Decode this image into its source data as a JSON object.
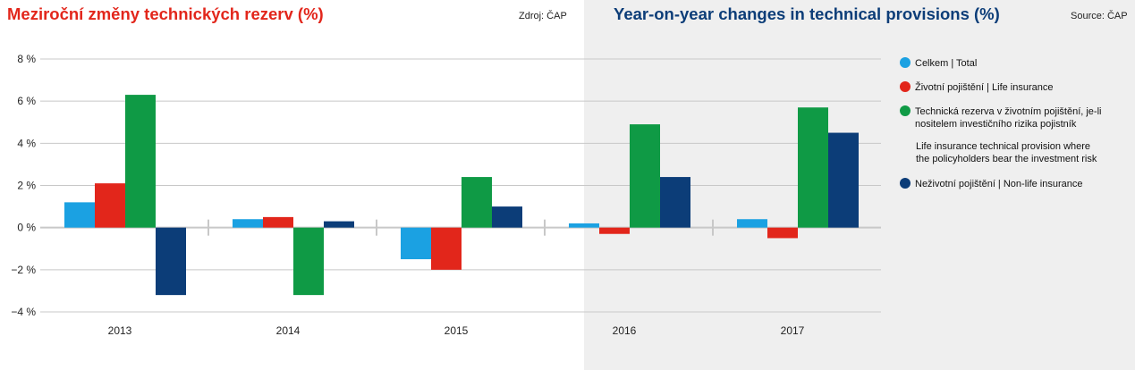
{
  "header": {
    "title_cz": "Meziroční změny technických rezerv (%)",
    "source_cz": "Zdroj: ČAP",
    "title_en": "Year-on-year changes in technical provisions (%)",
    "source_en": "Source: ČAP"
  },
  "legend": {
    "items": [
      {
        "label": "Celkem | Total",
        "color": "#1ba1e2"
      },
      {
        "label_lines": [
          "Životní pojištění | Life insurance"
        ],
        "color": "#e2261b"
      },
      {
        "label_lines": [
          "Technická rezerva v životním pojištění, je-li",
          "nositelem investičního rizika pojistník"
        ],
        "color": "#0f9a45"
      },
      {
        "label_lines": [
          "Neživotní pojištění | Non-life insurance"
        ],
        "color": "#0c3d78"
      }
    ],
    "note_lines": [
      "Life insurance technical provision where",
      "the policyholders bear the investment risk"
    ]
  },
  "chart_data": {
    "type": "bar",
    "categories": [
      "2013",
      "2014",
      "2015",
      "2016",
      "2017"
    ],
    "ylim": [
      -4,
      8
    ],
    "yticks": [
      -4,
      -2,
      0,
      2,
      4,
      6,
      8
    ],
    "ytick_labels": [
      "−4 %",
      "−2 %",
      "0 %",
      "2 %",
      "4 %",
      "6 %",
      "8 %"
    ],
    "grid": true,
    "legend_position": "right",
    "series": [
      {
        "name": "Celkem | Total",
        "color": "#1ba1e2",
        "values": [
          1.2,
          0.4,
          -1.5,
          0.2,
          0.4
        ]
      },
      {
        "name": "Životní pojištění | Life insurance",
        "color": "#e2261b",
        "values": [
          2.1,
          0.5,
          -2.0,
          -0.3,
          -0.5
        ]
      },
      {
        "name": "Technická rezerva v životním pojištění, je-li nositelem investičního rizika pojistník",
        "color": "#0f9a45",
        "values": [
          6.3,
          -3.2,
          2.4,
          4.9,
          5.7
        ]
      },
      {
        "name": "Neživotní pojištění | Non-life insurance",
        "color": "#0c3d78",
        "values": [
          -3.2,
          0.3,
          1.0,
          2.4,
          4.5
        ]
      }
    ]
  }
}
